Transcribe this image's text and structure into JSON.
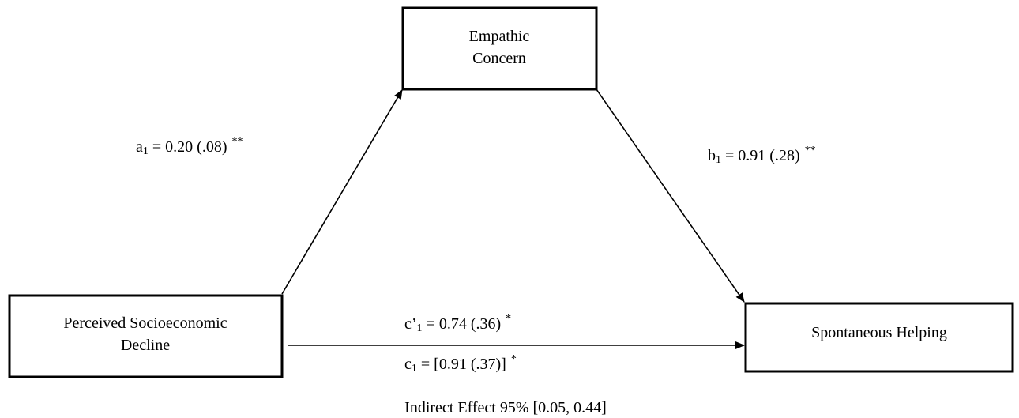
{
  "nodes": [
    {
      "lines": [
        "Empathic",
        "Concern"
      ]
    },
    {
      "lines": [
        "Perceived Socioeconomic",
        "Decline"
      ]
    },
    {
      "lines": [
        "Spontaneous Helping"
      ]
    }
  ],
  "paths": [
    {
      "letter": "a",
      "sub": "1",
      "text": "= 0.20 (.08)",
      "sig": "**"
    },
    {
      "letter": "b",
      "sub": "1",
      "text": "= 0.91 (.28)",
      "sig": "**"
    },
    {
      "letter": "c’",
      "sub": "1",
      "text": "= 0.74 (.36)",
      "sig": "*"
    },
    {
      "letter": "c",
      "sub": "1",
      "text": "= [0.91 (.37)]",
      "sig": "*"
    }
  ],
  "indirect": "Indirect Effect 95% [0.05, 0.44]"
}
